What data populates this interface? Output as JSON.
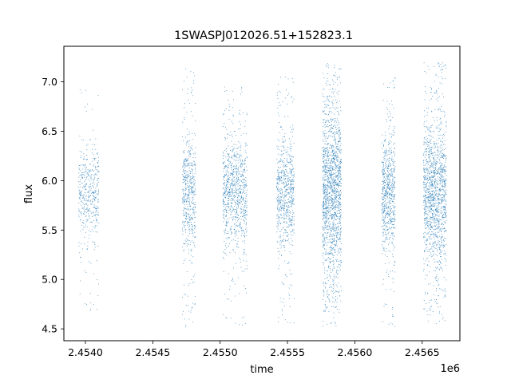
{
  "chart_data": {
    "type": "scatter",
    "title": "1SWASPJ012026.51+152823.1",
    "xlabel": "time",
    "ylabel": "flux",
    "x_offset_label": "1e6",
    "xlim": [
      2.45384,
      2.45678
    ],
    "ylim": [
      4.38,
      7.36
    ],
    "x_ticks": [
      2.454,
      2.4545,
      2.455,
      2.4555,
      2.456,
      2.4565
    ],
    "x_tick_labels": [
      "2.4540",
      "2.4545",
      "2.4550",
      "2.4555",
      "2.4560",
      "2.4565"
    ],
    "y_ticks": [
      4.5,
      5.0,
      5.5,
      6.0,
      6.5,
      7.0
    ],
    "y_tick_labels": [
      "4.5",
      "5.0",
      "5.5",
      "6.0",
      "6.5",
      "7.0"
    ],
    "marker_color": "#1f77b4",
    "grid": false,
    "series": [
      {
        "clusters": [
          {
            "x_start": 2.45395,
            "x_end": 2.4541,
            "y_core_low": 5.55,
            "y_core_high": 6.2,
            "y_min": 4.65,
            "y_max": 6.95,
            "count": 450
          },
          {
            "x_start": 2.45472,
            "x_end": 2.45482,
            "y_core_low": 5.45,
            "y_core_high": 6.25,
            "y_min": 4.52,
            "y_max": 7.15,
            "count": 550
          },
          {
            "x_start": 2.45502,
            "x_end": 2.4552,
            "y_core_low": 5.5,
            "y_core_high": 6.25,
            "y_min": 4.52,
            "y_max": 6.95,
            "count": 900
          },
          {
            "x_start": 2.45542,
            "x_end": 2.45555,
            "y_core_low": 5.5,
            "y_core_high": 6.25,
            "y_min": 4.55,
            "y_max": 7.05,
            "count": 700
          },
          {
            "x_start": 2.45576,
            "x_end": 2.4559,
            "y_core_low": 5.3,
            "y_core_high": 6.45,
            "y_min": 4.52,
            "y_max": 7.2,
            "count": 1600
          },
          {
            "x_start": 2.4562,
            "x_end": 2.4563,
            "y_core_low": 5.5,
            "y_core_high": 6.25,
            "y_min": 4.52,
            "y_max": 7.05,
            "count": 700
          },
          {
            "x_start": 2.45651,
            "x_end": 2.45668,
            "y_core_low": 5.4,
            "y_core_high": 6.35,
            "y_min": 4.55,
            "y_max": 7.2,
            "count": 1400
          }
        ]
      }
    ]
  }
}
